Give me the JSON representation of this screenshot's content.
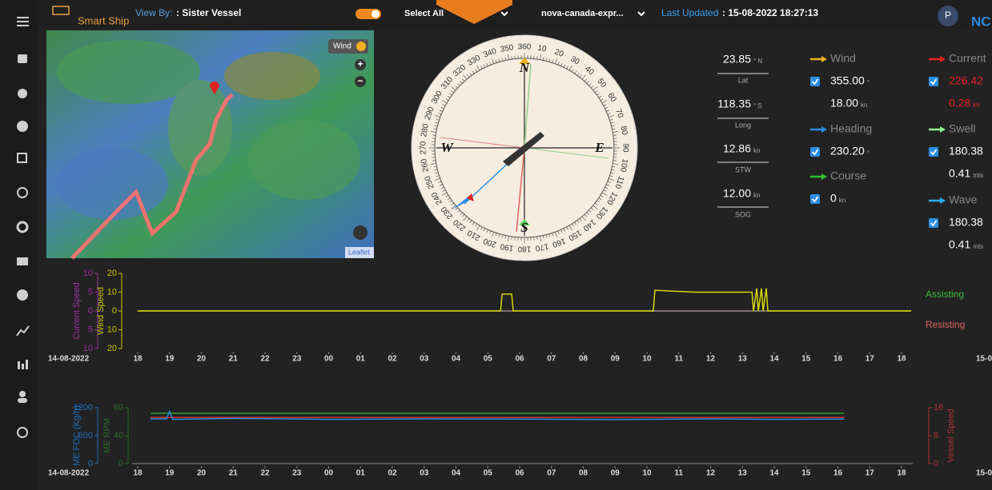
{
  "header": {
    "brand": "Smart Ship",
    "view_by_label": "View By:",
    "view_by_value": ": Sister Vessel",
    "select": "Select All",
    "vessel": "nova-canada-expr...",
    "last_updated_label": "Last Updated",
    "last_updated_value": ": 15-08-2022 18:27:13",
    "avatar": "P",
    "user": "NC"
  },
  "map": {
    "wind_button": "Wind",
    "zoom_in": "+",
    "zoom_out": "−",
    "attribution": "Leaflet"
  },
  "compass": {
    "north": "N",
    "east": "E",
    "south": "S",
    "west": "W",
    "degrees": [
      360,
      10,
      20,
      30,
      40,
      50,
      60,
      70,
      80,
      90,
      100,
      110,
      120,
      130,
      140,
      150,
      160,
      170,
      180,
      190,
      200,
      210,
      220,
      230,
      240,
      250,
      260,
      270,
      280,
      290,
      300,
      310,
      320,
      330,
      340,
      350
    ]
  },
  "position": [
    {
      "value": "23.85",
      "unit": "° N",
      "label": "Lat"
    },
    {
      "value": "118.35",
      "unit": "° S",
      "label": "Long"
    },
    {
      "value": "12.86",
      "unit": "kn",
      "label": "STW"
    },
    {
      "value": "12.00",
      "unit": "kn",
      "label": "SOG"
    }
  ],
  "readings": [
    {
      "name": "Wind",
      "color": "#f0b020",
      "lines": [
        {
          "value": "355.00",
          "unit": "°"
        },
        {
          "value": "18.00",
          "unit": "kn"
        }
      ]
    },
    {
      "name": "Heading",
      "color": "#2b8fe8",
      "lines": [
        {
          "value": "230.20",
          "unit": "°"
        }
      ]
    },
    {
      "name": "Course",
      "color": "#2ec02e",
      "lines": [
        {
          "value": "0",
          "unit": "kn"
        }
      ]
    },
    {
      "name": "Current",
      "color": "#e82020",
      "value_color": "#e82020",
      "lines": [
        {
          "value": "226.42",
          "unit": ""
        },
        {
          "value": "0.28",
          "unit": "kn"
        }
      ]
    },
    {
      "name": "Swell",
      "color": "#90f090",
      "lines": [
        {
          "value": "180.38",
          "unit": ""
        },
        {
          "value": "0.41",
          "unit": "mts"
        }
      ]
    },
    {
      "name": "Wave",
      "color": "#30b0f0",
      "lines": [
        {
          "value": "180.38",
          "unit": ""
        },
        {
          "value": "0.41",
          "unit": "mts"
        }
      ]
    }
  ],
  "charts": [
    {
      "type": "line",
      "date_label": "14-08-2022",
      "next_date_label": "15-0",
      "xlim": [
        0,
        24
      ],
      "xticks": [
        {
          "value": 0,
          "label": "18"
        },
        {
          "value": 1,
          "label": "19"
        },
        {
          "value": 2,
          "label": "20"
        },
        {
          "value": 3,
          "label": "21"
        },
        {
          "value": 4,
          "label": "22"
        },
        {
          "value": 5,
          "label": "23"
        },
        {
          "value": 6,
          "label": "00"
        },
        {
          "value": 7,
          "label": "01"
        },
        {
          "value": 8,
          "label": "02"
        },
        {
          "value": 9,
          "label": "03"
        },
        {
          "value": 10,
          "label": "04"
        },
        {
          "value": 11,
          "label": "05"
        },
        {
          "value": 12,
          "label": "06"
        },
        {
          "value": 13,
          "label": "07"
        },
        {
          "value": 14,
          "label": "08"
        },
        {
          "value": 15,
          "label": "09"
        },
        {
          "value": 16,
          "label": "10"
        },
        {
          "value": 17,
          "label": "11"
        },
        {
          "value": 18,
          "label": "12"
        },
        {
          "value": 19,
          "label": "13"
        },
        {
          "value": 20,
          "label": "14"
        },
        {
          "value": 21,
          "label": "15"
        },
        {
          "value": 22,
          "label": "16"
        },
        {
          "value": 23,
          "label": "17"
        },
        {
          "value": 24,
          "label": "18"
        }
      ],
      "axes": [
        {
          "label": "Current Speed",
          "color": "#a030a0",
          "ylim": [
            -10,
            10
          ],
          "yticks": [
            10,
            5,
            0,
            {
              "value": -5,
              "label": "5"
            },
            {
              "value": -10,
              "label": "10"
            }
          ]
        },
        {
          "label": "Wind Speed",
          "color": "#c8c800",
          "ylim": [
            -20,
            20
          ],
          "yticks": [
            20,
            10,
            0,
            {
              "value": -10,
              "label": "10"
            },
            {
              "value": -20,
              "label": "20"
            }
          ]
        }
      ],
      "series": [
        {
          "axis": 0,
          "color": "#9a8a8a",
          "x": [
            0,
            24.3
          ],
          "values": [
            0,
            0
          ]
        },
        {
          "axis": 1,
          "color": "#d8d800",
          "x": [
            0,
            11.4,
            11.45,
            11.75,
            11.8,
            16.2,
            16.25,
            17.5,
            19.3,
            19.35,
            19.45,
            19.5,
            19.6,
            19.65,
            19.75,
            19.8,
            24.3
          ],
          "values": [
            0,
            0,
            9,
            9,
            0,
            0,
            11,
            10,
            10,
            0,
            12,
            0,
            12,
            0,
            12,
            0,
            0
          ]
        }
      ],
      "legend": [
        {
          "name": "Assisting",
          "color": "#3cbf3c"
        },
        {
          "name": "Resisting",
          "color": "#e06060"
        }
      ]
    },
    {
      "type": "line",
      "date_label": "14-08-2022",
      "next_date_label": "15-0",
      "xlim": [
        0,
        24
      ],
      "xticks": [
        {
          "value": 0,
          "label": "18"
        },
        {
          "value": 1,
          "label": "19"
        },
        {
          "value": 2,
          "label": "20"
        },
        {
          "value": 3,
          "label": "21"
        },
        {
          "value": 4,
          "label": "22"
        },
        {
          "value": 5,
          "label": "23"
        },
        {
          "value": 6,
          "label": "00"
        },
        {
          "value": 7,
          "label": "01"
        },
        {
          "value": 8,
          "label": "02"
        },
        {
          "value": 9,
          "label": "03"
        },
        {
          "value": 10,
          "label": "04"
        },
        {
          "value": 11,
          "label": "05"
        },
        {
          "value": 12,
          "label": "06"
        },
        {
          "value": 13,
          "label": "07"
        },
        {
          "value": 14,
          "label": "08"
        },
        {
          "value": 15,
          "label": "09"
        },
        {
          "value": 16,
          "label": "10"
        },
        {
          "value": 17,
          "label": "11"
        },
        {
          "value": 18,
          "label": "12"
        },
        {
          "value": 19,
          "label": "13"
        },
        {
          "value": 20,
          "label": "14"
        },
        {
          "value": 21,
          "label": "15"
        },
        {
          "value": 22,
          "label": "16"
        },
        {
          "value": 23,
          "label": "17"
        },
        {
          "value": 24,
          "label": "18"
        }
      ],
      "axes": [
        {
          "label": "ME FOC (Kg/h)",
          "color": "#1e70c0",
          "ylim": [
            0,
            1200
          ],
          "yticks": [
            1200,
            600,
            0
          ]
        },
        {
          "label": "ME RPM",
          "color": "#2e6b2e",
          "ylim": [
            0,
            80
          ],
          "yticks": [
            80,
            40,
            0
          ]
        },
        {
          "label": "Vessel Speed",
          "color": "#b03030",
          "side": "right",
          "ylim": [
            0,
            16
          ],
          "yticks": [
            16,
            8,
            0
          ]
        }
      ],
      "series": [
        {
          "axis": 1,
          "color": "#2ea02e",
          "x": [
            0.4,
            22.2
          ],
          "values": [
            72,
            72
          ]
        },
        {
          "axis": 2,
          "color": "#d03030",
          "x": [
            0.4,
            22.2
          ],
          "values": [
            13.2,
            13.2
          ]
        },
        {
          "axis": 0,
          "color": "#2b8fe8",
          "x": [
            0.4,
            0.9,
            1.0,
            1.1,
            3,
            6,
            9,
            12,
            15,
            18,
            20,
            22.2
          ],
          "values": [
            960,
            960,
            1120,
            950,
            970,
            950,
            960,
            955,
            945,
            960,
            950,
            955
          ]
        }
      ]
    }
  ]
}
